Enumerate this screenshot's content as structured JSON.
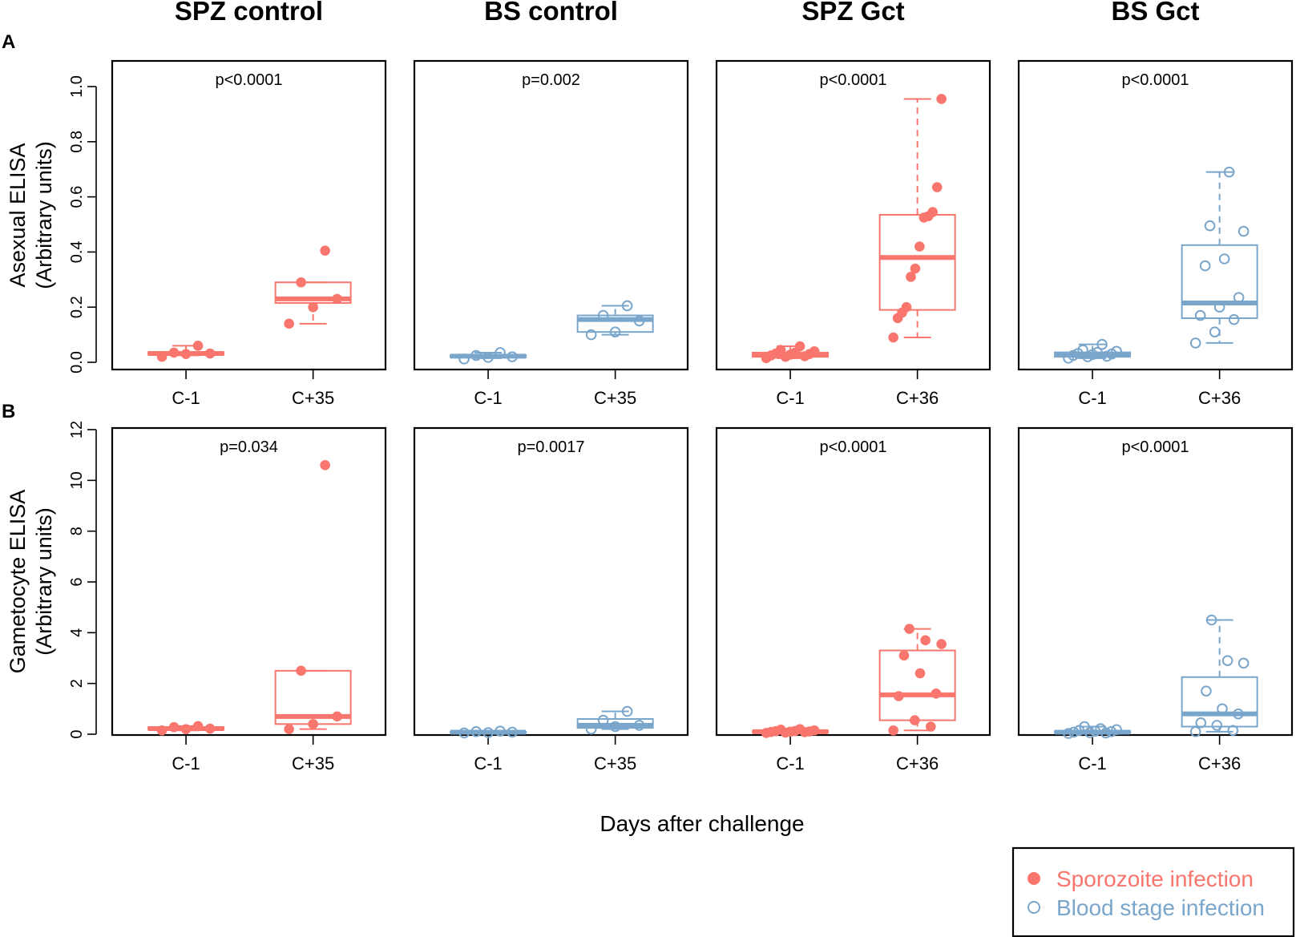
{
  "chart_data": {
    "type": "box",
    "xlabel": "Days after challenge",
    "column_titles": [
      "SPZ control",
      "BS control",
      "SPZ Gct",
      "BS Gct"
    ],
    "rows": [
      {
        "row_label": "A",
        "ylabel_line1": "Asexual ELISA",
        "ylabel_line2": "(Arbitrary units)",
        "ylim": [
          0,
          1.0
        ],
        "yticks": [
          0.0,
          0.2,
          0.4,
          0.6,
          0.8,
          1.0
        ],
        "ytick_labels": [
          "0.0",
          "0.2",
          "0.4",
          "0.6",
          "0.8",
          "1.0"
        ],
        "panels": [
          {
            "title": "SPZ control",
            "pvalue": "p<0.0001",
            "infection": "sporozoite",
            "groups": [
              {
                "label": "C-1",
                "box": {
                  "low": 0.025,
                  "q1": 0.028,
                  "median": 0.032,
                  "q3": 0.036,
                  "high": 0.06
                },
                "points": [
                  0.02,
                  0.03,
                  0.032,
                  0.035,
                  0.06
                ]
              },
              {
                "label": "C+35",
                "box": {
                  "low": 0.14,
                  "q1": 0.215,
                  "median": 0.23,
                  "q3": 0.29,
                  "high": 0.29
                },
                "points": [
                  0.14,
                  0.2,
                  0.23,
                  0.29,
                  0.405
                ]
              }
            ]
          },
          {
            "title": "BS control",
            "pvalue": "p=0.002",
            "infection": "blood",
            "groups": [
              {
                "label": "C-1",
                "box": {
                  "low": 0.015,
                  "q1": 0.018,
                  "median": 0.022,
                  "q3": 0.026,
                  "high": 0.035
                },
                "points": [
                  0.012,
                  0.018,
                  0.02,
                  0.025,
                  0.035
                ]
              },
              {
                "label": "C+35",
                "box": {
                  "low": 0.1,
                  "q1": 0.11,
                  "median": 0.155,
                  "q3": 0.17,
                  "high": 0.205
                },
                "points": [
                  0.1,
                  0.11,
                  0.15,
                  0.17,
                  0.205
                ]
              }
            ]
          },
          {
            "title": "SPZ Gct",
            "pvalue": "p<0.0001",
            "infection": "sporozoite",
            "groups": [
              {
                "label": "C-1",
                "box": {
                  "low": 0.015,
                  "q1": 0.02,
                  "median": 0.028,
                  "q3": 0.035,
                  "high": 0.058
                },
                "points": [
                  0.015,
                  0.02,
                  0.022,
                  0.025,
                  0.028,
                  0.03,
                  0.032,
                  0.035,
                  0.04,
                  0.045,
                  0.058
                ]
              },
              {
                "label": "C+36",
                "box": {
                  "low": 0.09,
                  "q1": 0.19,
                  "median": 0.38,
                  "q3": 0.535,
                  "high": 0.955
                },
                "points": [
                  0.09,
                  0.16,
                  0.18,
                  0.2,
                  0.31,
                  0.34,
                  0.42,
                  0.525,
                  0.53,
                  0.545,
                  0.635,
                  0.955
                ]
              }
            ]
          },
          {
            "title": "BS Gct",
            "pvalue": "p<0.0001",
            "infection": "blood",
            "groups": [
              {
                "label": "C-1",
                "box": {
                  "low": 0.015,
                  "q1": 0.02,
                  "median": 0.028,
                  "q3": 0.036,
                  "high": 0.065
                },
                "points": [
                  0.015,
                  0.02,
                  0.022,
                  0.025,
                  0.028,
                  0.03,
                  0.032,
                  0.036,
                  0.04,
                  0.045,
                  0.065
                ]
              },
              {
                "label": "C+36",
                "box": {
                  "low": 0.07,
                  "q1": 0.16,
                  "median": 0.215,
                  "q3": 0.425,
                  "high": 0.69
                },
                "points": [
                  0.07,
                  0.11,
                  0.155,
                  0.17,
                  0.2,
                  0.235,
                  0.35,
                  0.375,
                  0.475,
                  0.495,
                  0.69
                ]
              }
            ]
          }
        ]
      },
      {
        "row_label": "B",
        "ylabel_line1": "Gametocyte ELISA",
        "ylabel_line2": "(Arbitrary units)",
        "ylim": [
          0,
          12
        ],
        "yticks": [
          0,
          2,
          4,
          6,
          8,
          10,
          12
        ],
        "ytick_labels": [
          "0",
          "2",
          "4",
          "6",
          "8",
          "10",
          "12"
        ],
        "panels": [
          {
            "title": "SPZ control",
            "pvalue": "p=0.034",
            "infection": "sporozoite",
            "groups": [
              {
                "label": "C-1",
                "box": {
                  "low": 0.15,
                  "q1": 0.18,
                  "median": 0.22,
                  "q3": 0.28,
                  "high": 0.32
                },
                "points": [
                  0.15,
                  0.2,
                  0.22,
                  0.28,
                  0.32
                ]
              },
              {
                "label": "C+35",
                "box": {
                  "low": 0.2,
                  "q1": 0.4,
                  "median": 0.7,
                  "q3": 2.5,
                  "high": 2.5
                },
                "points": [
                  0.2,
                  0.4,
                  0.7,
                  2.5,
                  10.6
                ]
              }
            ]
          },
          {
            "title": "BS control",
            "pvalue": "p=0.0017",
            "infection": "blood",
            "groups": [
              {
                "label": "C-1",
                "box": {
                  "low": 0.05,
                  "q1": 0.06,
                  "median": 0.08,
                  "q3": 0.1,
                  "high": 0.12
                },
                "points": [
                  0.05,
                  0.06,
                  0.08,
                  0.1,
                  0.12
                ]
              },
              {
                "label": "C+35",
                "box": {
                  "low": 0.2,
                  "q1": 0.25,
                  "median": 0.35,
                  "q3": 0.6,
                  "high": 0.9
                },
                "points": [
                  0.2,
                  0.3,
                  0.35,
                  0.55,
                  0.9
                ]
              }
            ]
          },
          {
            "title": "SPZ Gct",
            "pvalue": "p<0.0001",
            "infection": "sporozoite",
            "groups": [
              {
                "label": "C-1",
                "box": {
                  "low": 0.05,
                  "q1": 0.07,
                  "median": 0.1,
                  "q3": 0.13,
                  "high": 0.2
                },
                "points": [
                  0.05,
                  0.06,
                  0.08,
                  0.09,
                  0.1,
                  0.11,
                  0.12,
                  0.13,
                  0.15,
                  0.18,
                  0.2
                ]
              },
              {
                "label": "C+36",
                "box": {
                  "low": 0.15,
                  "q1": 0.55,
                  "median": 1.55,
                  "q3": 3.3,
                  "high": 4.15
                },
                "points": [
                  0.15,
                  0.3,
                  0.55,
                  1.5,
                  1.6,
                  2.4,
                  3.1,
                  3.55,
                  3.7,
                  4.15
                ]
              }
            ]
          },
          {
            "title": "BS Gct",
            "pvalue": "p<0.0001",
            "infection": "blood",
            "groups": [
              {
                "label": "C-1",
                "box": {
                  "low": 0.03,
                  "q1": 0.05,
                  "median": 0.08,
                  "q3": 0.12,
                  "high": 0.3
                },
                "points": [
                  0.03,
                  0.05,
                  0.06,
                  0.08,
                  0.1,
                  0.12,
                  0.15,
                  0.18,
                  0.22,
                  0.3
                ]
              },
              {
                "label": "C+36",
                "box": {
                  "low": 0.1,
                  "q1": 0.3,
                  "median": 0.8,
                  "q3": 2.25,
                  "high": 4.5
                },
                "points": [
                  0.1,
                  0.15,
                  0.35,
                  0.45,
                  0.8,
                  1.0,
                  1.7,
                  2.8,
                  2.9,
                  4.5
                ]
              }
            ]
          }
        ]
      }
    ],
    "legend": {
      "position": "bottom-right",
      "entries": [
        {
          "name": "Sporozoite infection",
          "marker": "filled-circle",
          "color": "#f8766d"
        },
        {
          "name": "Blood stage infection",
          "marker": "open-circle",
          "color": "#7aa6cc"
        }
      ]
    },
    "colors": {
      "sporozoite": "#f8766d",
      "blood": "#7aa6cc",
      "axis": "#000000"
    }
  }
}
